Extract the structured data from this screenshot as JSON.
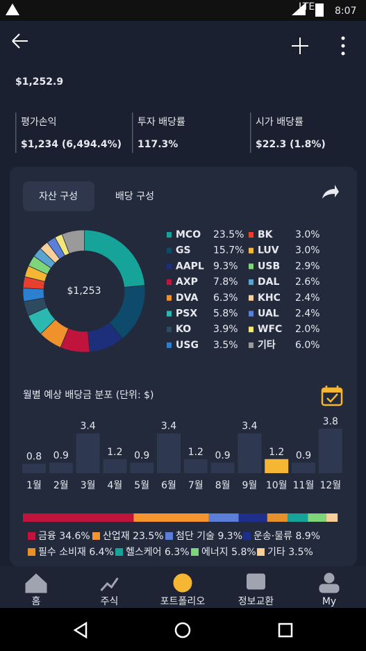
{
  "status": {
    "network": "LTE",
    "time": "8:07"
  },
  "header": {
    "total": "$1,252.9"
  },
  "stats": [
    {
      "label": "평가손익",
      "value": "$1,234 (6,494.4%)"
    },
    {
      "label": "투자 배당률",
      "value": "117.3%"
    },
    {
      "label": "시가 배당률",
      "value": "$22.3 (1.8%)"
    }
  ],
  "tabs": [
    "자산 구성",
    "배당 구성"
  ],
  "donut": {
    "type": "pie",
    "center_label": "$1,253",
    "categories": [
      "MCO",
      "GS",
      "AAPL",
      "AXP",
      "DVA",
      "PSX",
      "KO",
      "USG",
      "BK",
      "LUV",
      "USB",
      "DAL",
      "KHC",
      "UAL",
      "WFC",
      "기타"
    ],
    "values": [
      23.5,
      15.7,
      9.3,
      7.8,
      6.3,
      5.8,
      3.9,
      3.5,
      3.0,
      3.0,
      2.9,
      2.6,
      2.4,
      2.4,
      2.0,
      6.0
    ],
    "value_labels": [
      "23.5%",
      "15.7%",
      "9.3%",
      "7.8%",
      "6.3%",
      "5.8%",
      "3.9%",
      "3.5%",
      "3.0%",
      "3.0%",
      "2.9%",
      "2.6%",
      "2.4%",
      "2.4%",
      "2.0%",
      "6.0%"
    ],
    "colors": [
      "#16a39a",
      "#0e4a6b",
      "#1d2f7a",
      "#c0143c",
      "#f0922b",
      "#2ab8b0",
      "#2e4a5e",
      "#2d7fd0",
      "#e8402f",
      "#f5b733",
      "#7fd67a",
      "#5aa5d0",
      "#f7cf9a",
      "#5b7fd8",
      "#f3e77a",
      "#9a9a9a"
    ]
  },
  "monthly": {
    "type": "bar",
    "title": "월별 예상 배당금 분포 (단위: $)",
    "categories": [
      "1월",
      "2월",
      "3월",
      "4월",
      "5월",
      "6월",
      "7월",
      "8월",
      "9월",
      "10월",
      "11월",
      "12월"
    ],
    "values": [
      0.8,
      0.9,
      3.4,
      1.2,
      0.9,
      3.4,
      1.2,
      0.9,
      3.4,
      1.2,
      0.9,
      3.8
    ],
    "ylim": [
      0,
      3.8
    ],
    "color": "#2e3850",
    "highlight": 9,
    "highlight_color": "#f5b733"
  },
  "sectors": {
    "type": "stacked-bar",
    "categories": [
      "금융",
      "산업재",
      "첨단 기술",
      "운송·물류",
      "필수 소비재",
      "헬스케어",
      "에너지",
      "기타"
    ],
    "values": [
      34.6,
      23.5,
      9.3,
      8.9,
      6.4,
      6.3,
      5.8,
      3.5
    ],
    "value_labels": [
      "34.6%",
      "23.5%",
      "9.3%",
      "8.9%",
      "6.4%",
      "6.3%",
      "5.8%",
      "3.5%"
    ],
    "colors": [
      "#c0143c",
      "#f5952f",
      "#5b7fd8",
      "#1d2f8a",
      "#e8902a",
      "#16a39a",
      "#7fd67a",
      "#f7cf9a"
    ],
    "xlim": [
      0,
      100
    ]
  },
  "nav": {
    "items": [
      "홈",
      "주식",
      "포트폴리오",
      "정보교환",
      "My"
    ],
    "active": 2
  }
}
